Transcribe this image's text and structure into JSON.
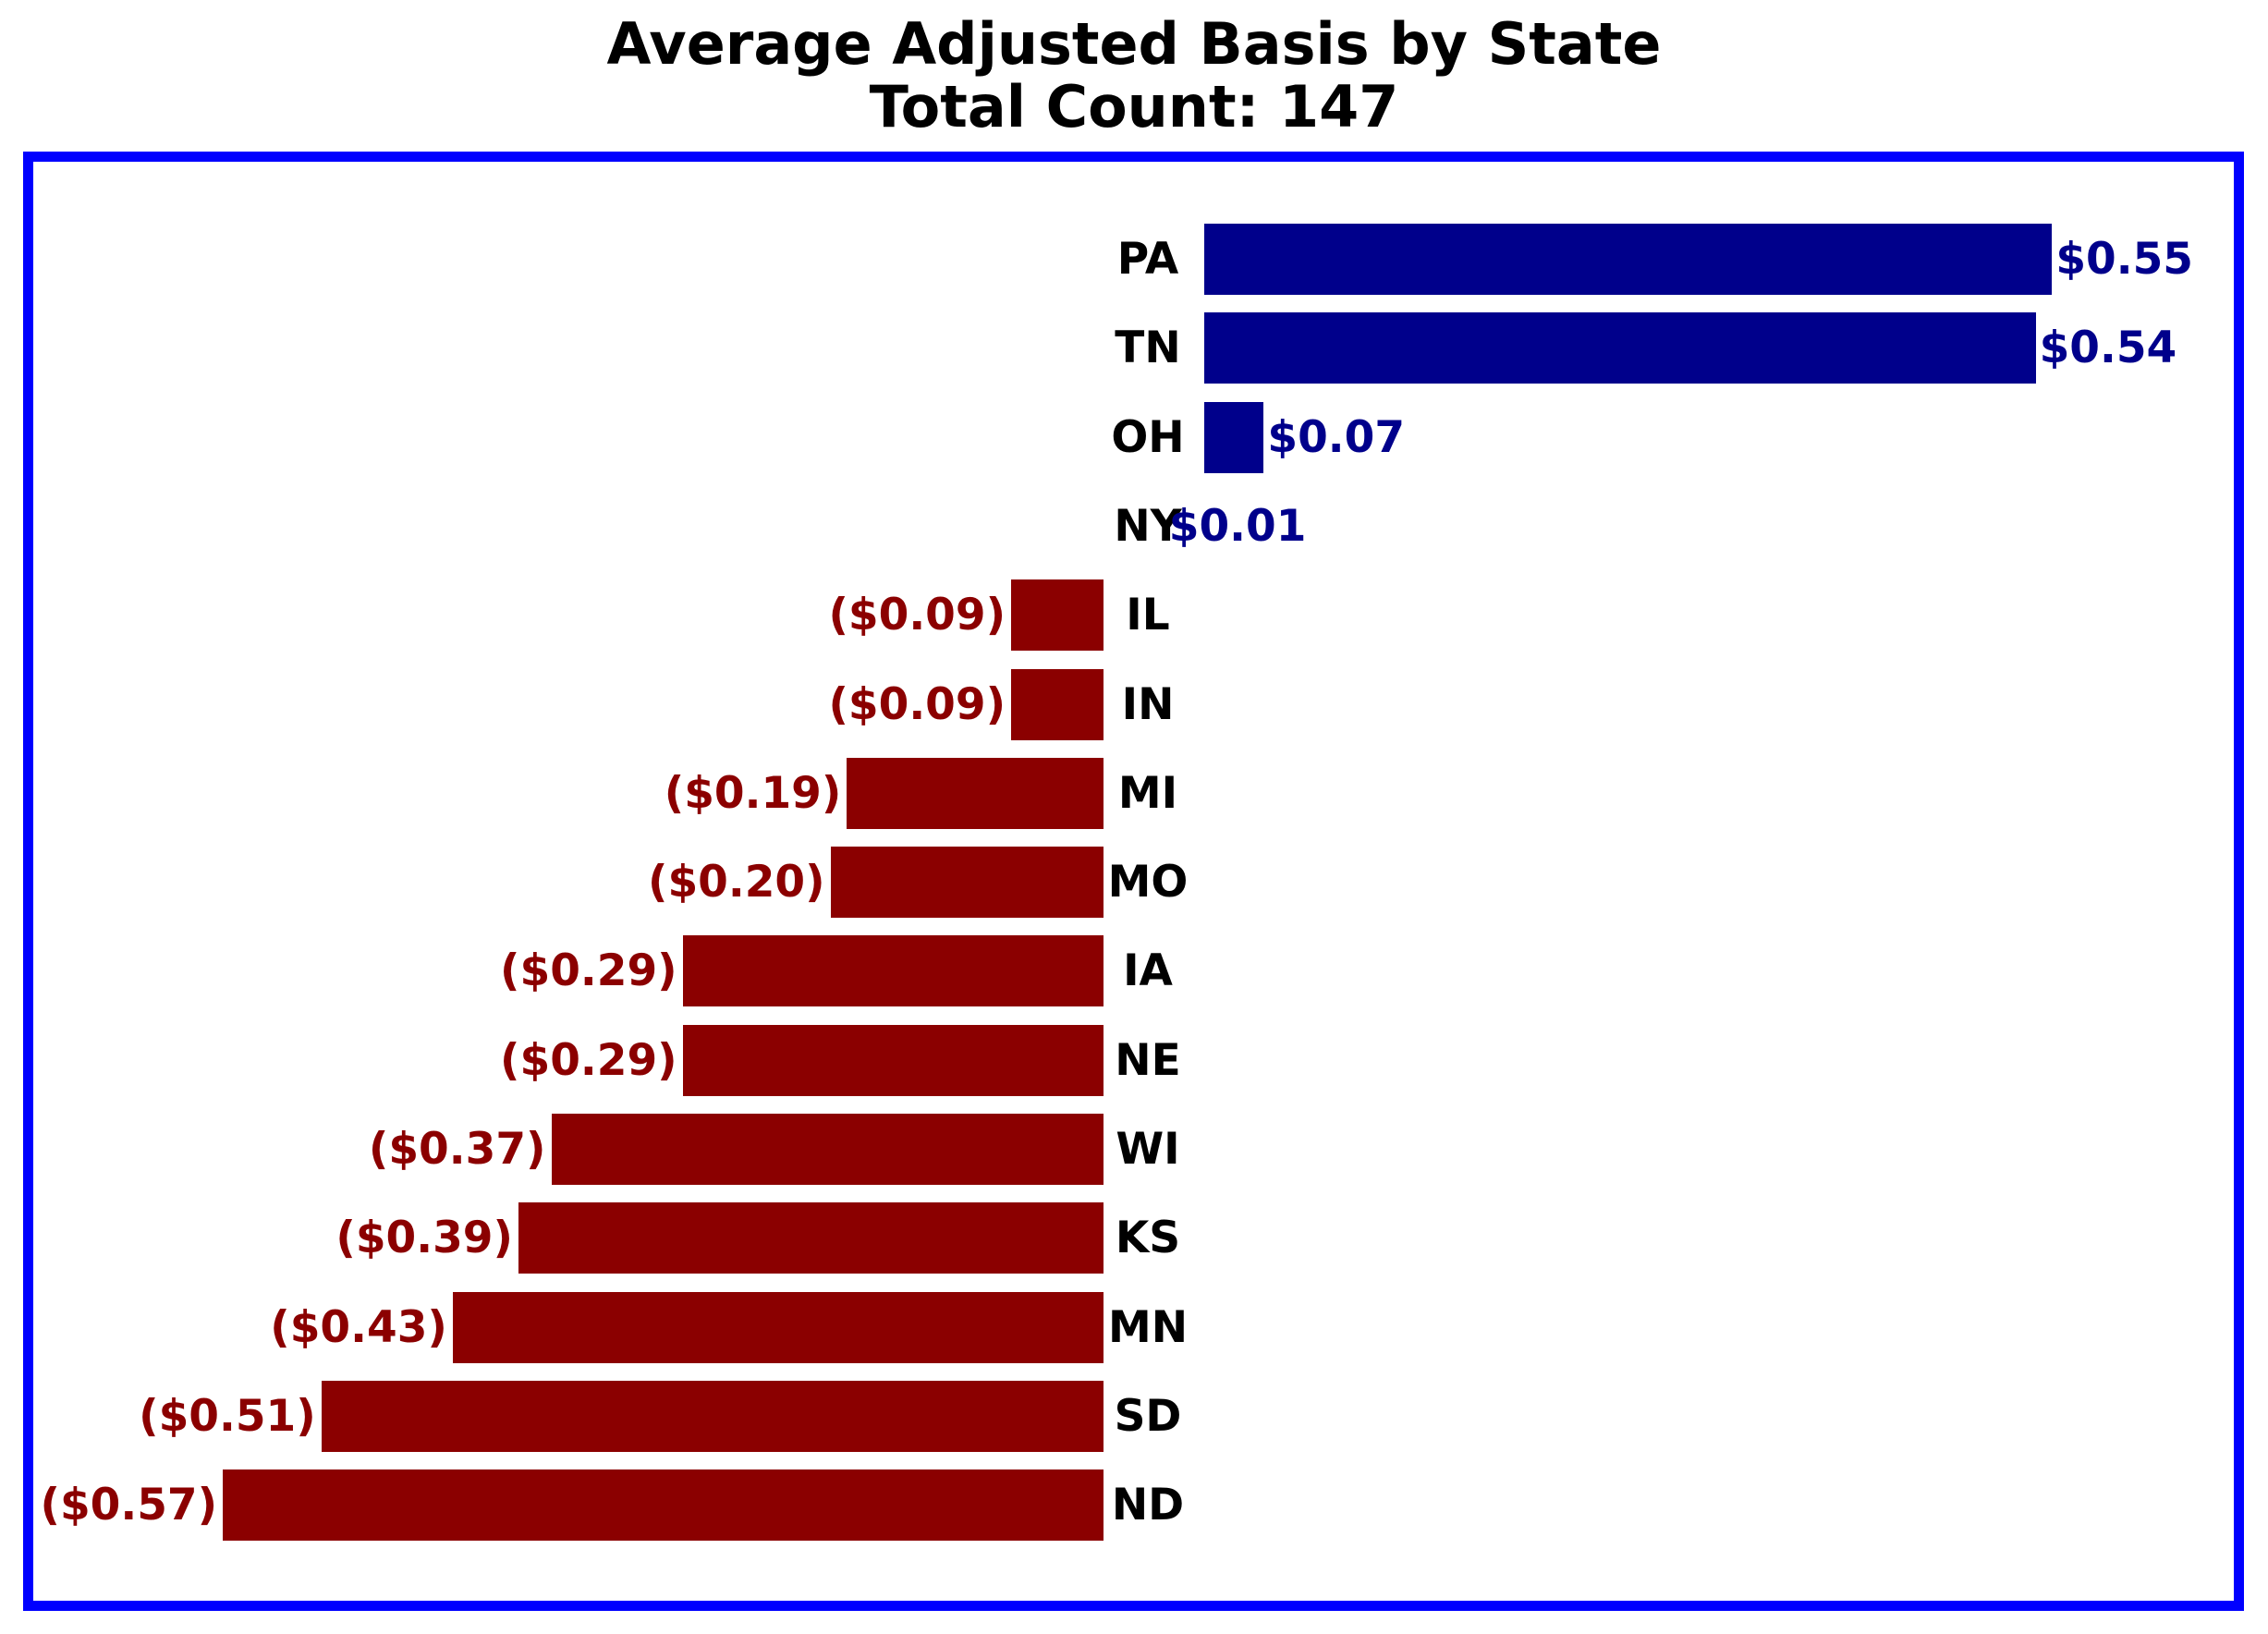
{
  "title": {
    "line1": "Average Adjusted Basis by State",
    "line2": "Total Count: 147"
  },
  "chart_data": {
    "type": "bar",
    "orientation": "horizontal",
    "title": "Average Adjusted Basis by State",
    "subtitle": "Total Count: 147",
    "total_count": 147,
    "categories": [
      "PA",
      "TN",
      "OH",
      "NY",
      "IL",
      "IN",
      "MI",
      "MO",
      "IA",
      "NE",
      "WI",
      "KS",
      "MN",
      "SD",
      "ND"
    ],
    "values": [
      0.55,
      0.54,
      0.07,
      0.01,
      -0.09,
      -0.09,
      -0.19,
      -0.2,
      -0.29,
      -0.29,
      -0.37,
      -0.39,
      -0.43,
      -0.51,
      -0.57
    ],
    "value_labels": [
      "$0.55",
      "$0.54",
      "$0.07",
      "$0.01",
      "($0.09)",
      "($0.09)",
      "($0.19)",
      "($0.20)",
      "($0.29)",
      "($0.29)",
      "($0.37)",
      "($0.39)",
      "($0.43)",
      "($0.51)",
      "($0.57)"
    ],
    "positive_color": "#00008B",
    "negative_color": "#8B0000",
    "frame_color": "#0000FF",
    "title_color": "#000000",
    "state_label_color": "#000000",
    "xlim": [
      -0.72,
      0.7
    ],
    "grid": false,
    "legend": "none",
    "axis_ticks": "none"
  }
}
